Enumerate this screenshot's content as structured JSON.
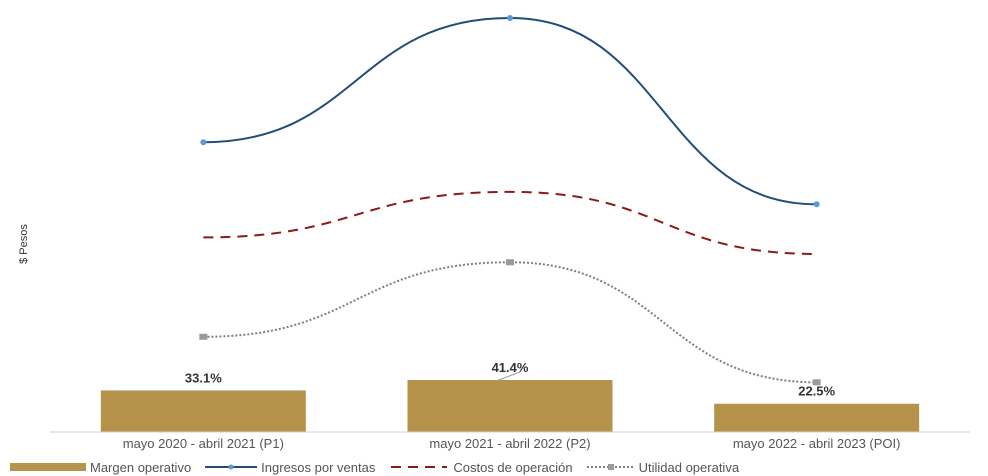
{
  "chart_data": {
    "type": "bar",
    "ylabel": "$ Pesos",
    "categories": [
      "mayo 2020 - abril 2021 (P1)",
      "mayo 2021 - abril 2022 (P2)",
      "mayo 2022 - abril 2023 (POI)"
    ],
    "bar_series": {
      "name": "Margen operativo",
      "values": [
        33.1,
        41.4,
        22.5
      ],
      "labels": [
        "33.1%",
        "41.4%",
        "22.5%"
      ],
      "color": "#b5934b"
    },
    "line_series": [
      {
        "name": "Ingresos por ventas",
        "values": [
          0.7,
          1.0,
          0.55
        ],
        "color": "#1f4e79",
        "style": "solid"
      },
      {
        "name": "Costos de operación",
        "values": [
          0.47,
          0.58,
          0.43
        ],
        "color": "#8b1a1a",
        "style": "dashed"
      },
      {
        "name": "Utilidad operativa",
        "values": [
          0.23,
          0.41,
          0.12
        ],
        "color": "#7f7f7f",
        "style": "dotted"
      }
    ],
    "legend_position": "bottom",
    "grid": false
  }
}
